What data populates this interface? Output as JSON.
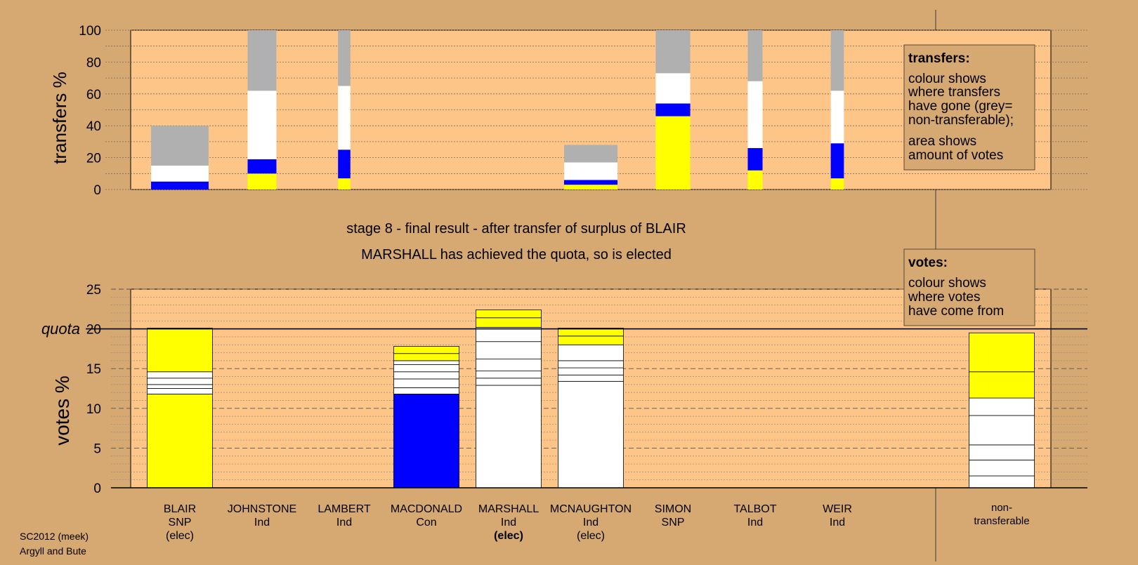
{
  "colors": {
    "background": "#d6a872",
    "plot_area": "#fdc588",
    "yellow": "#ffff00",
    "blue": "#0000ff",
    "white": "#ffffff",
    "grey": "#b0b0b0",
    "legend_fill": "#d6a872"
  },
  "stage_title": "stage 8 - final result - after transfer of surplus of BLAIR",
  "stage_subtitle": "MARSHALL has achieved the quota, so is elected",
  "footer": {
    "line1": "SC2012 (meek)",
    "line2": "Argyll and Bute"
  },
  "legend_transfers": {
    "heading": "transfers:",
    "lines": [
      "colour shows",
      "where transfers",
      "have gone (grey=",
      "non-transferable);"
    ],
    "lines2": [
      "area shows",
      "amount of votes"
    ]
  },
  "legend_votes": {
    "heading": "votes:",
    "lines": [
      "colour shows",
      "where votes",
      "have come from"
    ]
  },
  "chart_data": [
    {
      "type": "bar",
      "name": "transfers",
      "ylabel": "transfers %",
      "ylim": [
        0,
        100
      ],
      "yticks": [
        0,
        20,
        40,
        60,
        80,
        100
      ],
      "bars": [
        {
          "candidate": "BLAIR",
          "width": 0.7,
          "segments": [
            {
              "color": "blue",
              "value": 5
            },
            {
              "color": "white",
              "value": 10
            },
            {
              "color": "grey",
              "value": 25
            }
          ]
        },
        {
          "candidate": "JOHNSTONE",
          "width": 0.35,
          "segments": [
            {
              "color": "yellow",
              "value": 10
            },
            {
              "color": "blue",
              "value": 9
            },
            {
              "color": "white",
              "value": 43
            },
            {
              "color": "grey",
              "value": 38
            }
          ]
        },
        {
          "candidate": "LAMBERT",
          "width": 0.15,
          "segments": [
            {
              "color": "yellow",
              "value": 7
            },
            {
              "color": "blue",
              "value": 18
            },
            {
              "color": "white",
              "value": 40
            },
            {
              "color": "grey",
              "value": 35
            }
          ]
        },
        {
          "candidate": "MACDONALD",
          "width": 0,
          "segments": []
        },
        {
          "candidate": "MARSHALL",
          "width": 0,
          "segments": []
        },
        {
          "candidate": "MCNAUGHTON",
          "width": 0.65,
          "segments": [
            {
              "color": "yellow",
              "value": 3
            },
            {
              "color": "blue",
              "value": 3
            },
            {
              "color": "white",
              "value": 11
            },
            {
              "color": "grey",
              "value": 11
            }
          ]
        },
        {
          "candidate": "SIMON",
          "width": 0.42,
          "segments": [
            {
              "color": "yellow",
              "value": 46
            },
            {
              "color": "blue",
              "value": 8
            },
            {
              "color": "white",
              "value": 19
            },
            {
              "color": "grey",
              "value": 27
            }
          ]
        },
        {
          "candidate": "TALBOT",
          "width": 0.18,
          "segments": [
            {
              "color": "yellow",
              "value": 12
            },
            {
              "color": "blue",
              "value": 14
            },
            {
              "color": "white",
              "value": 42
            },
            {
              "color": "grey",
              "value": 32
            }
          ]
        },
        {
          "candidate": "WEIR",
          "width": 0.16,
          "segments": [
            {
              "color": "yellow",
              "value": 7
            },
            {
              "color": "blue",
              "value": 22
            },
            {
              "color": "white",
              "value": 33
            },
            {
              "color": "grey",
              "value": 38
            }
          ]
        }
      ]
    },
    {
      "type": "bar",
      "name": "votes",
      "ylabel": "votes %",
      "ylim": [
        0,
        25
      ],
      "yticks": [
        0,
        5,
        10,
        15,
        20,
        25
      ],
      "quota": 20,
      "quota_label": "quota",
      "categories": [
        {
          "name": "BLAIR",
          "party": "SNP",
          "status": "(elec)",
          "status_bold": false
        },
        {
          "name": "JOHNSTONE",
          "party": "Ind",
          "status": "",
          "status_bold": false
        },
        {
          "name": "LAMBERT",
          "party": "Ind",
          "status": "",
          "status_bold": false
        },
        {
          "name": "MACDONALD",
          "party": "Con",
          "status": "",
          "status_bold": false
        },
        {
          "name": "MARSHALL",
          "party": "Ind",
          "status": "(elec)",
          "status_bold": true
        },
        {
          "name": "MCNAUGHTON",
          "party": "Ind",
          "status": "(elec)",
          "status_bold": false
        },
        {
          "name": "SIMON",
          "party": "SNP",
          "status": "",
          "status_bold": false
        },
        {
          "name": "TALBOT",
          "party": "Ind",
          "status": "",
          "status_bold": false
        },
        {
          "name": "WEIR",
          "party": "Ind",
          "status": "",
          "status_bold": false
        }
      ],
      "nontransferable_label": [
        "non-",
        "transferable"
      ],
      "bars": [
        {
          "candidate": "BLAIR",
          "segments": [
            {
              "color": "yellow",
              "value": 11.8
            },
            {
              "color": "white",
              "value": 0.7
            },
            {
              "color": "white",
              "value": 0.5
            },
            {
              "color": "white",
              "value": 0.8
            },
            {
              "color": "white",
              "value": 0.8
            },
            {
              "color": "yellow",
              "value": 5.5
            }
          ]
        },
        {
          "candidate": "MACDONALD",
          "segments": [
            {
              "color": "blue",
              "value": 11.8
            },
            {
              "color": "white",
              "value": 0.8
            },
            {
              "color": "white",
              "value": 1.1
            },
            {
              "color": "white",
              "value": 0.9
            },
            {
              "color": "white",
              "value": 0.9
            },
            {
              "color": "white",
              "value": 0.5
            },
            {
              "color": "yellow",
              "value": 0.9
            },
            {
              "color": "yellow",
              "value": 0.9
            }
          ]
        },
        {
          "candidate": "MARSHALL",
          "segments": [
            {
              "color": "white",
              "value": 12.9
            },
            {
              "color": "white",
              "value": 0.9
            },
            {
              "color": "white",
              "value": 0.9
            },
            {
              "color": "white",
              "value": 1.5
            },
            {
              "color": "white",
              "value": 2.2
            },
            {
              "color": "white",
              "value": 1.8
            },
            {
              "color": "yellow",
              "value": 1.2
            },
            {
              "color": "yellow",
              "value": 1.0
            }
          ]
        },
        {
          "candidate": "MCNAUGHTON",
          "segments": [
            {
              "color": "white",
              "value": 13.4
            },
            {
              "color": "white",
              "value": 0.8
            },
            {
              "color": "white",
              "value": 0.9
            },
            {
              "color": "white",
              "value": 0.9
            },
            {
              "color": "white",
              "value": 2.0
            },
            {
              "color": "yellow",
              "value": 1.1
            },
            {
              "color": "yellow",
              "value": 1.0
            }
          ]
        },
        {
          "candidate": "non-transferable",
          "segments": [
            {
              "color": "white",
              "value": 1.5
            },
            {
              "color": "white",
              "value": 2.0
            },
            {
              "color": "white",
              "value": 1.9
            },
            {
              "color": "white",
              "value": 3.7
            },
            {
              "color": "white",
              "value": 2.2
            },
            {
              "color": "yellow",
              "value": 3.3
            },
            {
              "color": "yellow",
              "value": 4.9
            }
          ]
        }
      ]
    }
  ]
}
